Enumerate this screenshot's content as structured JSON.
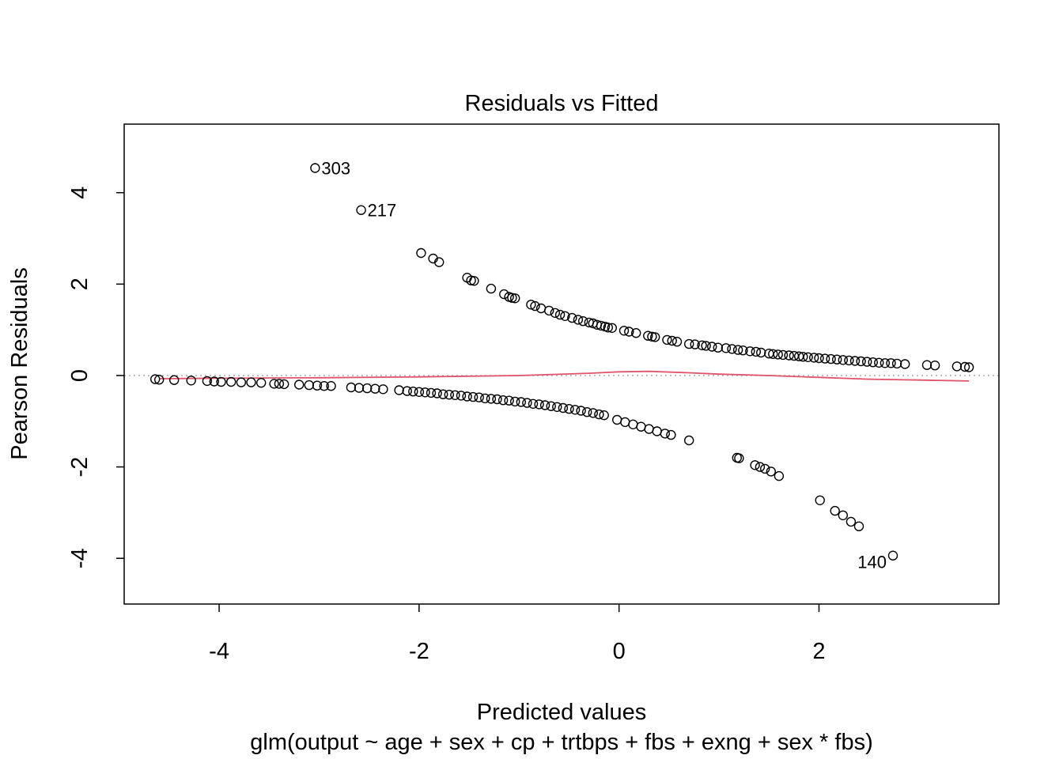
{
  "chart_data": {
    "type": "scatter",
    "title": "Residuals vs Fitted",
    "xlabel": "Predicted values",
    "subtitle": "glm(output ~ age + sex + cp + trtbps + fbs + exng + sex * fbs)",
    "ylabel": "Pearson Residuals",
    "xlim": [
      -4.95,
      3.8
    ],
    "ylim": [
      -5,
      5.5
    ],
    "xticks": [
      -4,
      -2,
      0,
      2
    ],
    "yticks": [
      -4,
      -2,
      0,
      2,
      4
    ],
    "x_tick_labels": [
      "-4",
      "-2",
      "0",
      "2"
    ],
    "y_tick_labels": [
      "-4",
      "-2",
      "0",
      "2",
      "4"
    ],
    "zero_line": {
      "y": 0,
      "style": "dotted",
      "color": "#aaaaaa"
    },
    "smoother_color": "#df536b",
    "point_color": "#000000",
    "grid": false,
    "legend": "none",
    "smoother": [
      [
        -4.6,
        -0.07
      ],
      [
        -4.0,
        -0.06
      ],
      [
        -3.0,
        -0.05
      ],
      [
        -2.0,
        -0.03
      ],
      [
        -1.0,
        0.0
      ],
      [
        -0.3,
        0.05
      ],
      [
        0.0,
        0.08
      ],
      [
        0.3,
        0.09
      ],
      [
        0.7,
        0.06
      ],
      [
        1.0,
        0.03
      ],
      [
        1.5,
        0.0
      ],
      [
        2.0,
        -0.04
      ],
      [
        2.5,
        -0.08
      ],
      [
        3.0,
        -0.1
      ],
      [
        3.5,
        -0.12
      ]
    ],
    "labeled_points": [
      {
        "x": -3.04,
        "y": 4.54,
        "label": "303",
        "side": "right"
      },
      {
        "x": -2.58,
        "y": 3.62,
        "label": "217",
        "side": "right"
      },
      {
        "x": 2.74,
        "y": -3.94,
        "label": "140",
        "side": "below-left"
      }
    ],
    "upper_points": [
      [
        -1.98,
        2.68
      ],
      [
        -1.86,
        2.56
      ],
      [
        -1.8,
        2.48
      ],
      [
        -1.52,
        2.14
      ],
      [
        -1.48,
        2.08
      ],
      [
        -1.45,
        2.07
      ],
      [
        -1.28,
        1.9
      ],
      [
        -1.15,
        1.78
      ],
      [
        -1.1,
        1.72
      ],
      [
        -1.07,
        1.7
      ],
      [
        -1.04,
        1.69
      ],
      [
        -0.88,
        1.55
      ],
      [
        -0.84,
        1.52
      ],
      [
        -0.78,
        1.47
      ],
      [
        -0.7,
        1.42
      ],
      [
        -0.64,
        1.37
      ],
      [
        -0.59,
        1.33
      ],
      [
        -0.54,
        1.3
      ],
      [
        -0.47,
        1.26
      ],
      [
        -0.41,
        1.22
      ],
      [
        -0.36,
        1.19
      ],
      [
        -0.3,
        1.16
      ],
      [
        -0.26,
        1.14
      ],
      [
        -0.22,
        1.11
      ],
      [
        -0.18,
        1.09
      ],
      [
        -0.14,
        1.07
      ],
      [
        -0.11,
        1.05
      ],
      [
        -0.07,
        1.04
      ],
      [
        0.05,
        0.98
      ],
      [
        0.1,
        0.96
      ],
      [
        0.17,
        0.93
      ],
      [
        0.29,
        0.87
      ],
      [
        0.33,
        0.85
      ],
      [
        0.36,
        0.84
      ],
      [
        0.48,
        0.78
      ],
      [
        0.53,
        0.76
      ],
      [
        0.58,
        0.74
      ],
      [
        0.7,
        0.69
      ],
      [
        0.76,
        0.68
      ],
      [
        0.83,
        0.66
      ],
      [
        0.87,
        0.65
      ],
      [
        0.93,
        0.63
      ],
      [
        0.99,
        0.61
      ],
      [
        1.07,
        0.6
      ],
      [
        1.13,
        0.58
      ],
      [
        1.19,
        0.56
      ],
      [
        1.24,
        0.55
      ],
      [
        1.31,
        0.53
      ],
      [
        1.37,
        0.52
      ],
      [
        1.42,
        0.5
      ],
      [
        1.5,
        0.48
      ],
      [
        1.54,
        0.47
      ],
      [
        1.59,
        0.46
      ],
      [
        1.64,
        0.45
      ],
      [
        1.7,
        0.44
      ],
      [
        1.75,
        0.43
      ],
      [
        1.8,
        0.42
      ],
      [
        1.84,
        0.41
      ],
      [
        1.89,
        0.4
      ],
      [
        1.95,
        0.39
      ],
      [
        2.0,
        0.38
      ],
      [
        2.06,
        0.37
      ],
      [
        2.12,
        0.36
      ],
      [
        2.18,
        0.35
      ],
      [
        2.24,
        0.34
      ],
      [
        2.3,
        0.33
      ],
      [
        2.36,
        0.32
      ],
      [
        2.42,
        0.31
      ],
      [
        2.48,
        0.3
      ],
      [
        2.54,
        0.29
      ],
      [
        2.6,
        0.28
      ],
      [
        2.66,
        0.27
      ],
      [
        2.72,
        0.27
      ],
      [
        2.78,
        0.26
      ],
      [
        2.86,
        0.25
      ],
      [
        3.08,
        0.23
      ],
      [
        3.16,
        0.22
      ],
      [
        3.38,
        0.2
      ],
      [
        3.46,
        0.19
      ],
      [
        3.5,
        0.18
      ]
    ],
    "lower_points": [
      [
        -4.64,
        -0.08
      ],
      [
        -4.6,
        -0.09
      ],
      [
        -4.45,
        -0.1
      ],
      [
        -4.28,
        -0.11
      ],
      [
        -4.12,
        -0.12
      ],
      [
        -4.05,
        -0.13
      ],
      [
        -3.98,
        -0.14
      ],
      [
        -3.88,
        -0.14
      ],
      [
        -3.78,
        -0.15
      ],
      [
        -3.68,
        -0.15
      ],
      [
        -3.58,
        -0.16
      ],
      [
        -3.45,
        -0.18
      ],
      [
        -3.4,
        -0.18
      ],
      [
        -3.35,
        -0.19
      ],
      [
        -3.2,
        -0.2
      ],
      [
        -3.1,
        -0.21
      ],
      [
        -3.02,
        -0.22
      ],
      [
        -2.95,
        -0.23
      ],
      [
        -2.88,
        -0.23
      ],
      [
        -2.68,
        -0.26
      ],
      [
        -2.6,
        -0.27
      ],
      [
        -2.52,
        -0.28
      ],
      [
        -2.44,
        -0.29
      ],
      [
        -2.36,
        -0.3
      ],
      [
        -2.2,
        -0.32
      ],
      [
        -2.12,
        -0.34
      ],
      [
        -2.06,
        -0.35
      ],
      [
        -2.0,
        -0.36
      ],
      [
        -1.94,
        -0.37
      ],
      [
        -1.88,
        -0.38
      ],
      [
        -1.82,
        -0.39
      ],
      [
        -1.76,
        -0.41
      ],
      [
        -1.7,
        -0.42
      ],
      [
        -1.64,
        -0.43
      ],
      [
        -1.58,
        -0.44
      ],
      [
        -1.52,
        -0.46
      ],
      [
        -1.46,
        -0.47
      ],
      [
        -1.4,
        -0.48
      ],
      [
        -1.34,
        -0.5
      ],
      [
        -1.28,
        -0.51
      ],
      [
        -1.22,
        -0.52
      ],
      [
        -1.16,
        -0.54
      ],
      [
        -1.1,
        -0.55
      ],
      [
        -1.04,
        -0.57
      ],
      [
        -0.98,
        -0.58
      ],
      [
        -0.92,
        -0.6
      ],
      [
        -0.86,
        -0.62
      ],
      [
        -0.8,
        -0.63
      ],
      [
        -0.74,
        -0.65
      ],
      [
        -0.68,
        -0.67
      ],
      [
        -0.62,
        -0.69
      ],
      [
        -0.56,
        -0.71
      ],
      [
        -0.5,
        -0.73
      ],
      [
        -0.44,
        -0.75
      ],
      [
        -0.38,
        -0.77
      ],
      [
        -0.32,
        -0.8
      ],
      [
        -0.26,
        -0.82
      ],
      [
        -0.2,
        -0.85
      ],
      [
        -0.15,
        -0.87
      ],
      [
        -0.02,
        -0.97
      ],
      [
        0.06,
        -1.02
      ],
      [
        0.14,
        -1.07
      ],
      [
        0.22,
        -1.12
      ],
      [
        0.3,
        -1.17
      ],
      [
        0.38,
        -1.22
      ],
      [
        0.46,
        -1.27
      ],
      [
        0.52,
        -1.3
      ],
      [
        0.7,
        -1.42
      ],
      [
        1.18,
        -1.8
      ],
      [
        1.2,
        -1.81
      ],
      [
        1.36,
        -1.96
      ],
      [
        1.41,
        -2.0
      ],
      [
        1.46,
        -2.04
      ],
      [
        1.52,
        -2.1
      ],
      [
        1.6,
        -2.2
      ],
      [
        2.01,
        -2.73
      ],
      [
        2.16,
        -2.96
      ],
      [
        2.24,
        -3.06
      ],
      [
        2.32,
        -3.2
      ],
      [
        2.4,
        -3.3
      ]
    ]
  }
}
